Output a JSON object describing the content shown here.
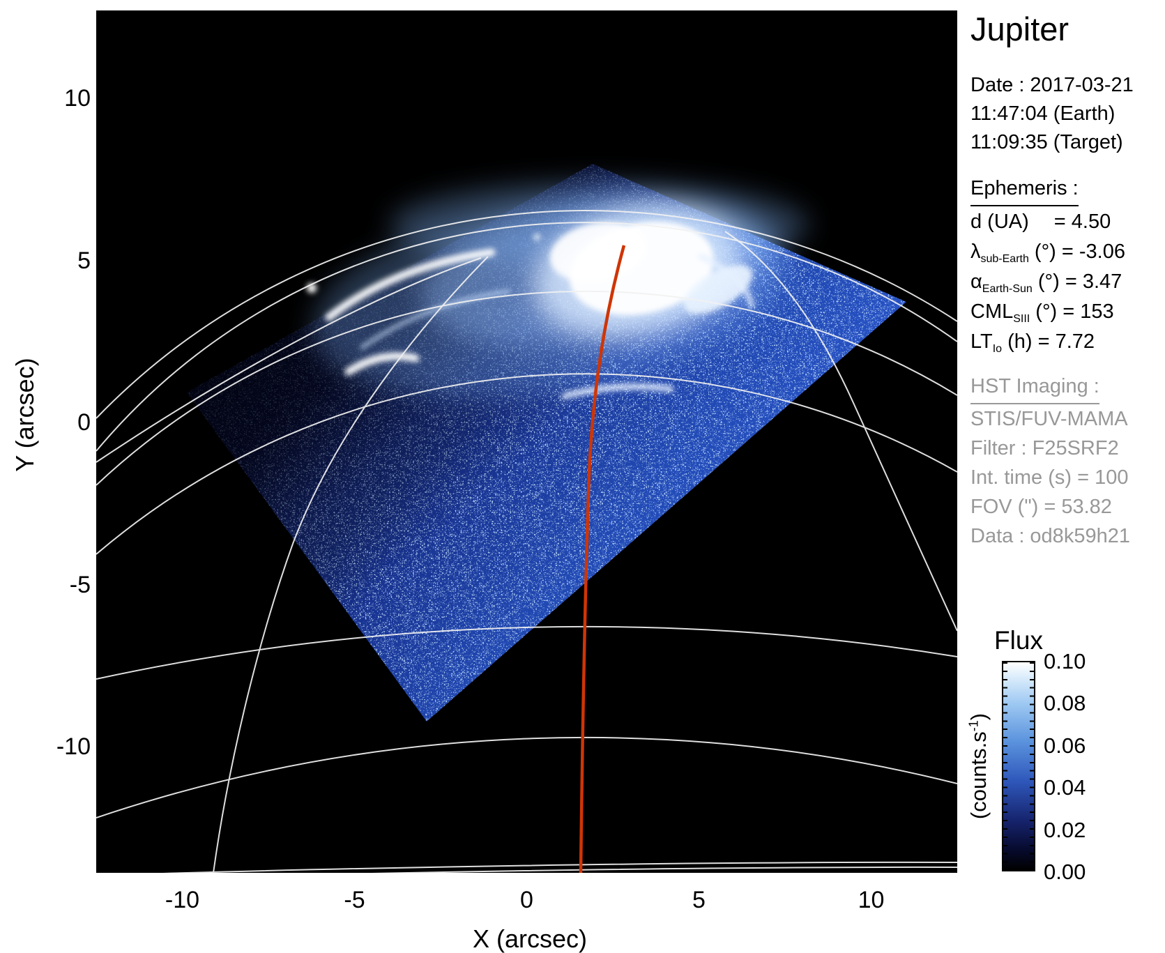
{
  "header": {
    "title": "Jupiter",
    "date_lines": [
      "Date : 2017-03-21",
      "11:47:04 (Earth)",
      "11:09:35 (Target)"
    ]
  },
  "ephemeris": {
    "heading": "Ephemeris :",
    "rows": [
      {
        "pre": "d (UA)",
        "sub": "",
        "post": "= 4.50",
        "wide": true
      },
      {
        "pre": "λ",
        "sub": "sub-Earth",
        "post": " (°) = -3.06",
        "wide": false
      },
      {
        "pre": "α",
        "sub": "Earth-Sun",
        "post": " (°) = 3.47",
        "wide": false
      },
      {
        "pre": "CML",
        "sub": "SIII",
        "post": " (°) = 153",
        "wide": false
      },
      {
        "pre": "LT",
        "sub": "Io",
        "post": " (h) = 7.72",
        "wide": false
      }
    ]
  },
  "hst": {
    "heading": "HST Imaging :",
    "lines": [
      "STIS/FUV-MAMA",
      "Filter : F25SRF2",
      "Int. time (s) = 100",
      "FOV (\") = 53.82",
      "Data : od8k59h21"
    ]
  },
  "colorbar": {
    "title": "Flux",
    "unit_pre": "(counts.s",
    "unit_sup": "-1",
    "unit_post": ")",
    "ticks": [
      "0.10",
      "0.08",
      "0.06",
      "0.04",
      "0.02",
      "0.00"
    ]
  },
  "axes": {
    "x_label": "X (arcsec)",
    "y_label": "Y (arcsec)"
  },
  "colors": {
    "background": "#ffffff",
    "plot_background": "#000000",
    "graticule": "#f2f2f2",
    "cml_meridian_red": "#cf3505",
    "noise_blue": "#2a57cf",
    "gray_text": "#989898"
  },
  "chart_data": {
    "type": "heatmap",
    "title": "Jupiter",
    "xlabel": "X (arcsec)",
    "ylabel": "Y (arcsec)",
    "xlim": [
      -12.5,
      12.5
    ],
    "ylim": [
      -13.9,
      12.7
    ],
    "x_ticks": [
      -10,
      -5,
      0,
      5,
      10
    ],
    "y_ticks": [
      10,
      5,
      0,
      -5,
      -10
    ],
    "grid": "planetary graticule (limb, 6 latitude arcs, 4 meridians) in white; CML meridian drawn in red",
    "colorbar": {
      "title": "Flux",
      "units": "counts.s-1",
      "min": 0.0,
      "max": 0.1,
      "tick_step": 0.02,
      "colormap": "black-blue-white"
    },
    "observation": {
      "target": "Jupiter",
      "date": "2017-03-21",
      "time_earth": "11:47:04",
      "time_target": "11:09:35",
      "d_UA": 4.5,
      "lambda_sub_earth_deg": -3.06,
      "alpha_earth_sun_deg": 3.47,
      "CML_SIII_deg": 153,
      "LT_Io_h": 7.72,
      "instrument": "STIS/FUV-MAMA",
      "filter": "F25SRF2",
      "int_time_s": 100,
      "fov_arcsec": 53.82,
      "dataset": "od8k59h21"
    },
    "features": [
      "rotated-square STIS field of view filled with blue photon-noise speckle, darker (shadowed) toward upper-left corner",
      "bright white auroral oval around the north pole near x=2..5, y=4..6 arcsec with main emission patch, left arc and small equatorward crescents",
      "faint diffuse glow bleeding above the planetary limb",
      "red CML meridian running from the aurora (x=2.8, y=6) down to the bottom of the frame at x=1.6"
    ]
  }
}
